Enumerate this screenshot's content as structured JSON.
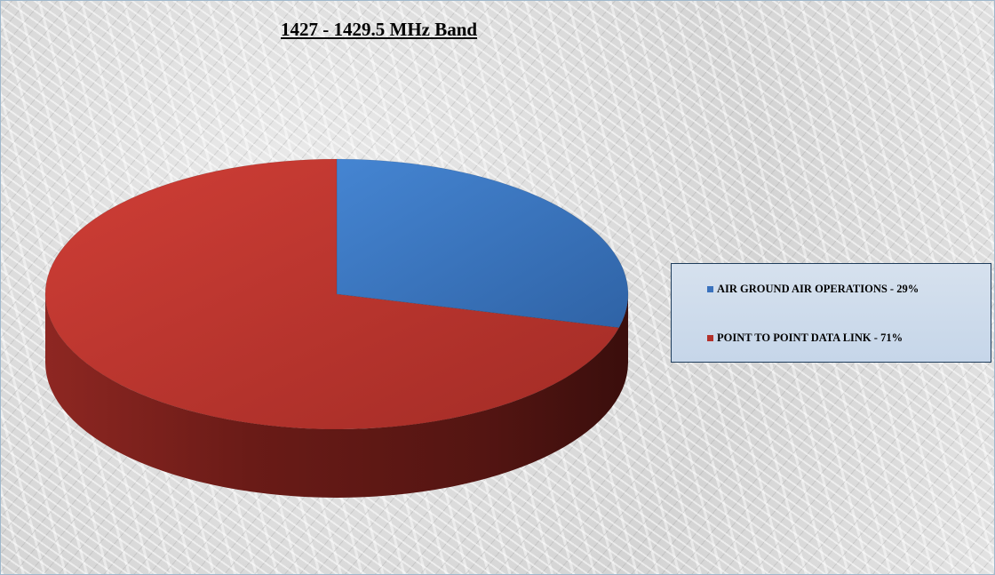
{
  "chart_data": {
    "type": "pie",
    "title": "1427 - 1429.5 MHz Band",
    "style": "3d",
    "legend_position": "right",
    "slices": [
      {
        "label": "AIR GROUND AIR OPERATIONS - 29%",
        "value": 29,
        "color": "#3a72bd"
      },
      {
        "label": "POINT TO POINT DATA LINK - 71%",
        "value": 71,
        "color": "#b3312b"
      }
    ]
  }
}
